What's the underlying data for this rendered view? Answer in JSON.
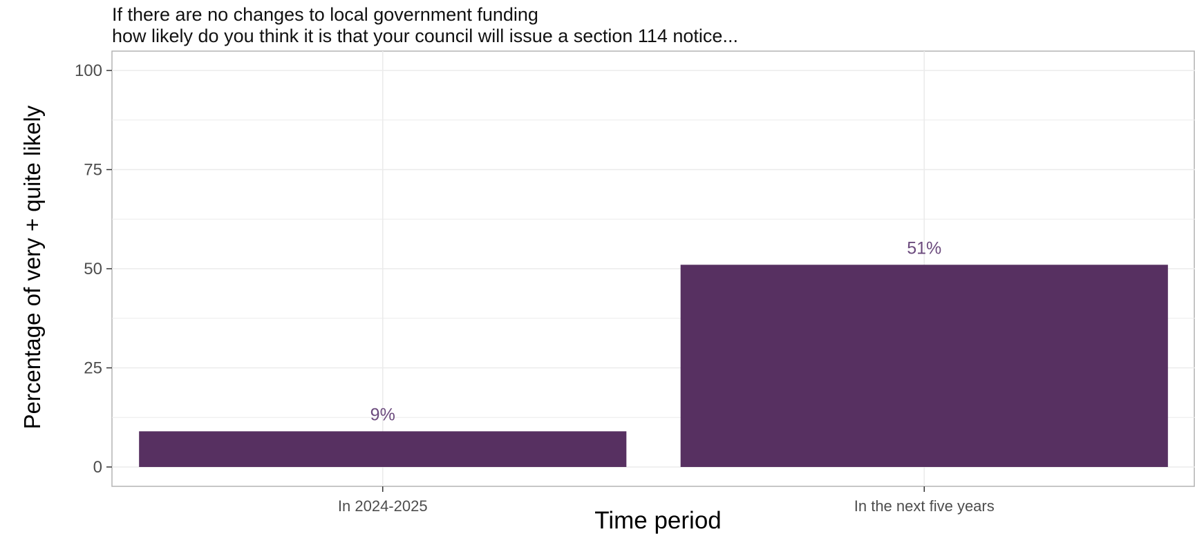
{
  "chart_data": {
    "type": "bar",
    "title_lines": [
      "If there are no changes to local government funding",
      "how likely do you think it is that your council will issue a section 114 notice..."
    ],
    "xlabel": "Time period",
    "ylabel": "Percentage of very + quite likely",
    "categories": [
      "In 2024-2025",
      "In the next five years"
    ],
    "values": [
      9,
      51
    ],
    "value_labels": [
      "9%",
      "51%"
    ],
    "ylim": [
      0,
      100
    ],
    "y_ticks": [
      0,
      25,
      50,
      75,
      100
    ],
    "y_tick_labels": [
      "0",
      "25",
      "50",
      "75",
      "100"
    ],
    "grid": true,
    "legend": "none",
    "colors": {
      "bar": "#573061",
      "data_label": "#6b4a7d",
      "grid": "#ebebeb",
      "panel_border": "#b3b3b3"
    }
  }
}
